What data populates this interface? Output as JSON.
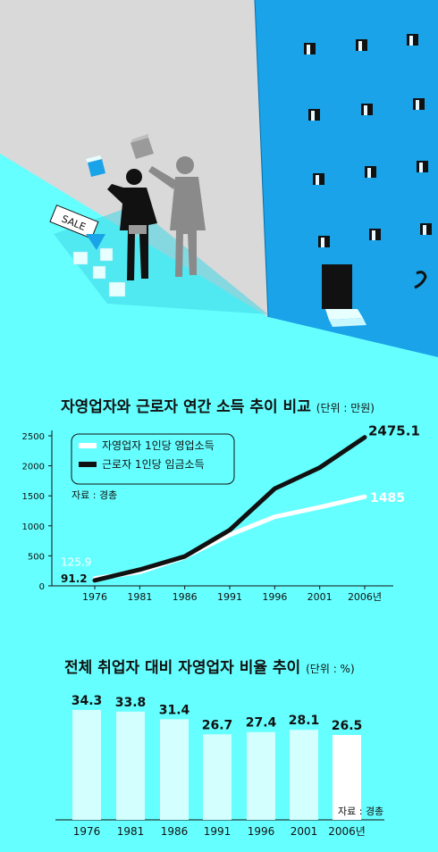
{
  "charts": [
    {
      "title": "자영업자와 근로자 연간 소득 추이 비교",
      "unit": "(단위 : 만원)",
      "source": "자료 : 경총",
      "chart_data": {
        "type": "line",
        "x": [
          "1976",
          "1981",
          "1986",
          "1991",
          "1996",
          "2001",
          "2006년"
        ],
        "ylim": [
          0,
          2500
        ],
        "yticks": [
          "0",
          "500",
          "1000",
          "1500",
          "2000",
          "2500"
        ],
        "series": [
          {
            "name": "자영업자 1인당 영업소득",
            "color": "#ffffff",
            "values": [
              125.9,
              230,
              480,
              850,
              1150,
              1310,
              1485
            ]
          },
          {
            "name": "근로자 1인당 임금소득",
            "color": "#111111",
            "values": [
              91.2,
              270,
              490,
              930,
              1620,
              1970,
              2475.1
            ]
          }
        ],
        "labels": [
          {
            "series": 0,
            "index": 0,
            "text": "125.9"
          },
          {
            "series": 1,
            "index": 0,
            "text": "91.2"
          },
          {
            "series": 0,
            "index": 6,
            "text": "1485"
          },
          {
            "series": 1,
            "index": 6,
            "text": "2475.1"
          }
        ],
        "legend": "top-left"
      }
    },
    {
      "title": "전체 취업자 대비 자영업자 비율 추이",
      "unit": "(단위 : %)",
      "source": "자료 : 경총",
      "chart_data": {
        "type": "bar",
        "categories": [
          "1976",
          "1981",
          "1986",
          "1991",
          "1996",
          "2001",
          "2006년"
        ],
        "values": [
          34.3,
          33.8,
          31.4,
          26.7,
          27.4,
          28.1,
          26.5
        ],
        "value_labels": [
          "34.3",
          "33.8",
          "31.4",
          "26.7",
          "27.4",
          "28.1",
          "26.5"
        ],
        "colors": {
          "bar": "#d4ffff",
          "highlight": "#ffffff"
        }
      }
    }
  ],
  "illustration": {
    "sign_text": "SALE"
  }
}
